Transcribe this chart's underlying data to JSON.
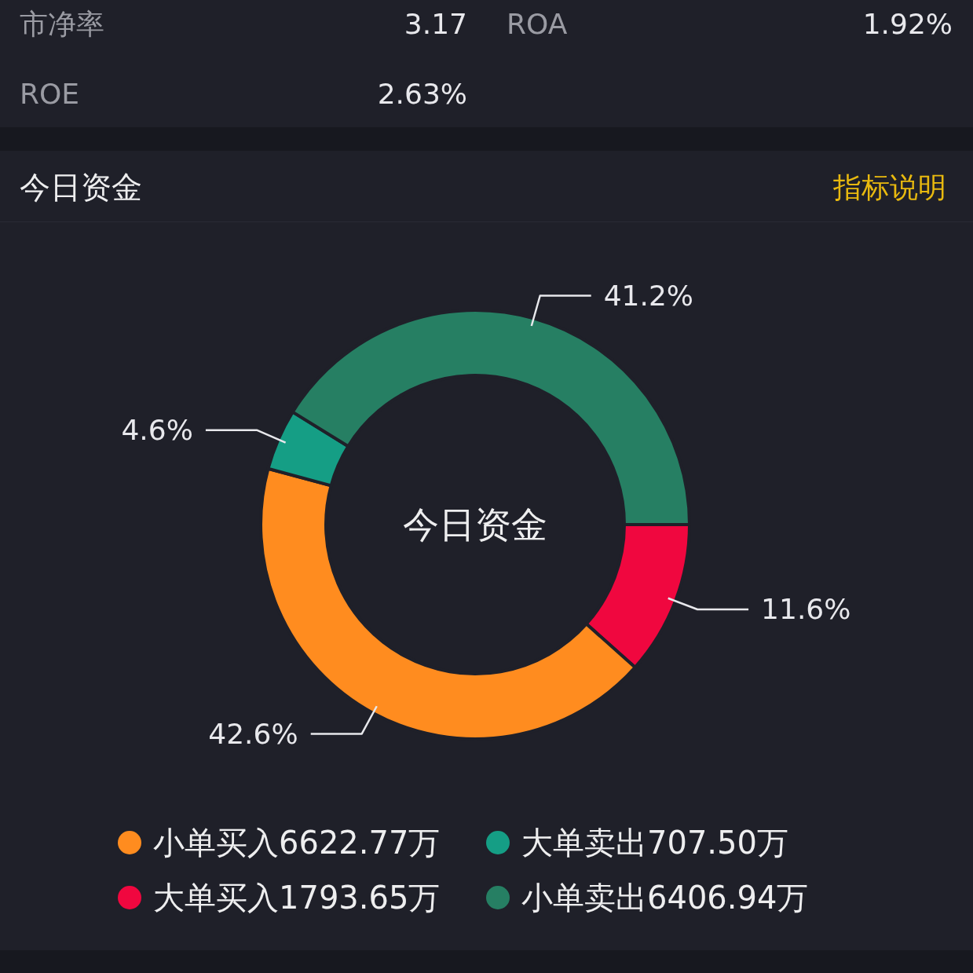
{
  "chart_data": [
    {
      "type": "other",
      "annotations": [
        "市净率",
        "3.17",
        "ROA",
        "1.92%",
        "ROE",
        "2.63%"
      ]
    },
    {
      "type": "donut",
      "title": "今日资金",
      "annotations": [
        "指标说明",
        "今日资金"
      ],
      "categories": [
        "大单买入1793.65万",
        "小单买入6622.77万",
        "大单卖出707.50万",
        "小单卖出6406.94万"
      ],
      "values": [
        11.6,
        42.6,
        4.6,
        41.2
      ],
      "colors": [
        "#f0073f",
        "#ff8c1f",
        "#159e85",
        "#267f63"
      ],
      "value_labels": [
        "11.6%",
        "42.6%",
        "4.6%",
        "41.2%"
      ],
      "legend": "bottom"
    }
  ]
}
